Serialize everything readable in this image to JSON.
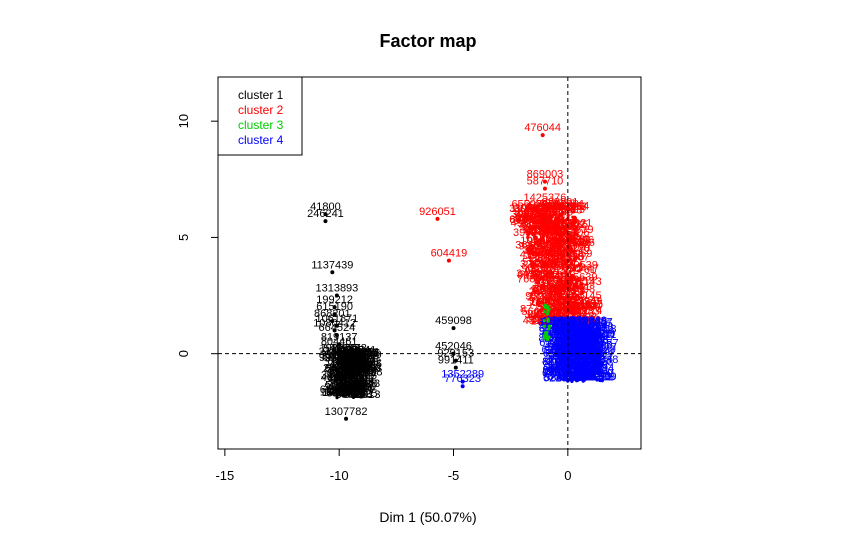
{
  "chart_data": {
    "type": "scatter",
    "title": "Factor map",
    "xlabel": "Dim 1 (50.07%)",
    "ylabel": "",
    "xlim": [
      -15.3,
      3.2
    ],
    "ylim": [
      -4.1,
      11.9
    ],
    "x_ticks": [
      -15,
      -10,
      -5,
      0
    ],
    "y_ticks": [
      0,
      5,
      10
    ],
    "reference_lines": {
      "x": 0,
      "y": 0
    },
    "legend": {
      "position": "top-left",
      "entries": [
        {
          "label": "cluster 1",
          "color": "#000000"
        },
        {
          "label": "cluster 2",
          "color": "#ff0000"
        },
        {
          "label": "cluster 3",
          "color": "#00cd00"
        },
        {
          "label": "cluster 4",
          "color": "#0000ff"
        }
      ]
    },
    "series": [
      {
        "name": "cluster 1",
        "color": "#000000",
        "points": [
          {
            "x": -10.6,
            "y": 6.0,
            "label": "41800"
          },
          {
            "x": -10.6,
            "y": 5.7,
            "label": "246241"
          },
          {
            "x": -10.3,
            "y": 3.5,
            "label": "1137439"
          },
          {
            "x": -10.1,
            "y": 2.5,
            "label": "1313893"
          },
          {
            "x": -10.2,
            "y": 2.0,
            "label": "199212"
          },
          {
            "x": -10.2,
            "y": 1.7,
            "label": "615190"
          },
          {
            "x": -10.3,
            "y": 1.4,
            "label": "868201"
          },
          {
            "x": -10.1,
            "y": 1.2,
            "label": "1061871"
          },
          {
            "x": -10.2,
            "y": 1.0,
            "label": "1080412"
          },
          {
            "x": -10.1,
            "y": 0.8,
            "label": "664524"
          },
          {
            "x": -10.0,
            "y": 0.4,
            "label": "819137"
          },
          {
            "x": -10.0,
            "y": 0.2,
            "label": "804461"
          },
          {
            "x": -9.9,
            "y": -0.1,
            "label": "542798"
          },
          {
            "x": -9.7,
            "y": -2.8,
            "label": "1307782"
          }
        ]
      },
      {
        "name": "cluster 2",
        "color": "#ff0000",
        "points": [
          {
            "x": -1.1,
            "y": 9.4,
            "label": "476044"
          },
          {
            "x": -5.7,
            "y": 5.8,
            "label": "926051"
          },
          {
            "x": -5.2,
            "y": 4.0,
            "label": "604419"
          },
          {
            "x": -1.0,
            "y": 7.4,
            "label": "869003"
          },
          {
            "x": -1.0,
            "y": 7.1,
            "label": "587710"
          },
          {
            "x": -1.0,
            "y": 6.4,
            "label": "1425376"
          },
          {
            "x": -1.0,
            "y": 6.0,
            "label": "127048"
          }
        ]
      },
      {
        "name": "cluster 3",
        "color": "#00cd00",
        "points": [
          {
            "x": -0.9,
            "y": 2.0,
            "label": ""
          }
        ]
      },
      {
        "name": "cluster 4",
        "color": "#0000ff",
        "points": [
          {
            "x": -4.6,
            "y": -1.2,
            "label": "1352289"
          },
          {
            "x": -4.6,
            "y": -1.4,
            "label": "776323"
          }
        ]
      },
      {
        "name": "",
        "color": "#000000",
        "points": [
          {
            "x": -5.0,
            "y": 1.1,
            "label": "459098"
          },
          {
            "x": -5.0,
            "y": 0.0,
            "label": "452046"
          },
          {
            "x": -4.9,
            "y": -0.3,
            "label": "929153"
          },
          {
            "x": -4.9,
            "y": -0.6,
            "label": "991411"
          }
        ]
      }
    ]
  }
}
